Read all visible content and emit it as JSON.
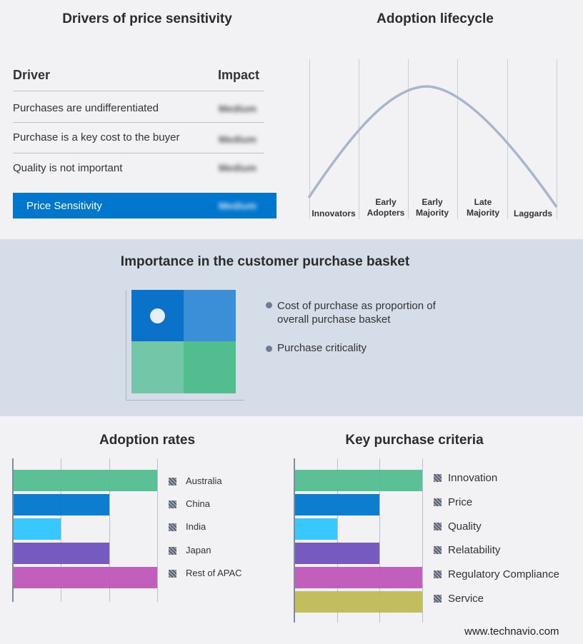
{
  "drivers": {
    "title": "Drivers of price sensitivity",
    "col_driver": "Driver",
    "col_impact": "Impact",
    "rows": [
      {
        "driver": "Purchases are undifferentiated",
        "impact": "Medium"
      },
      {
        "driver": "Purchase is a key cost to the buyer",
        "impact": "Medium"
      },
      {
        "driver": "Quality is not important",
        "impact": "Medium"
      }
    ],
    "summary": {
      "label": "Price Sensitivity",
      "impact": "Medium"
    },
    "accent": "#0077cc"
  },
  "lifecycle": {
    "title": "Adoption lifecycle",
    "stages": [
      [
        "Innovators"
      ],
      [
        "Early",
        "Adopters"
      ],
      [
        "Early",
        "Majority"
      ],
      [
        "Late",
        "Majority"
      ],
      [
        "Laggards"
      ]
    ],
    "curve_color": "#a9b6c9"
  },
  "basket": {
    "title": "Importance in the customer purchase basket",
    "legend": [
      "Cost of purchase as proportion of overall purchase basket",
      "Purchase criticality"
    ],
    "cells": [
      "#0a72c8",
      "#3a8fd6",
      "#74c6a8",
      "#52bd8f"
    ]
  },
  "chart_data": [
    {
      "type": "bar",
      "title": "Adoption rates",
      "orientation": "horizontal",
      "categories": [
        "Australia",
        "China",
        "India",
        "Japan",
        "Rest of APAC"
      ],
      "values": [
        3,
        2,
        1,
        2,
        3
      ],
      "xlim": [
        0,
        3
      ],
      "grid": true,
      "legend": "right",
      "colors": [
        "#52bd8f",
        "#0077cc",
        "#2ec4ff",
        "#6f51bd",
        "#bf55b7"
      ]
    },
    {
      "type": "bar",
      "title": "Key purchase criteria",
      "orientation": "horizontal",
      "categories": [
        "Innovation",
        "Price",
        "Quality",
        "Relatability",
        "Regulatory Compliance",
        "Service"
      ],
      "values": [
        3,
        2,
        1,
        2,
        3,
        3
      ],
      "xlim": [
        0,
        3
      ],
      "grid": true,
      "legend": "right",
      "colors": [
        "#52bd8f",
        "#0077cc",
        "#2ec4ff",
        "#6f51bd",
        "#bf55b7",
        "#bfba55"
      ]
    }
  ],
  "footer": {
    "site": "www.technavio.com"
  }
}
